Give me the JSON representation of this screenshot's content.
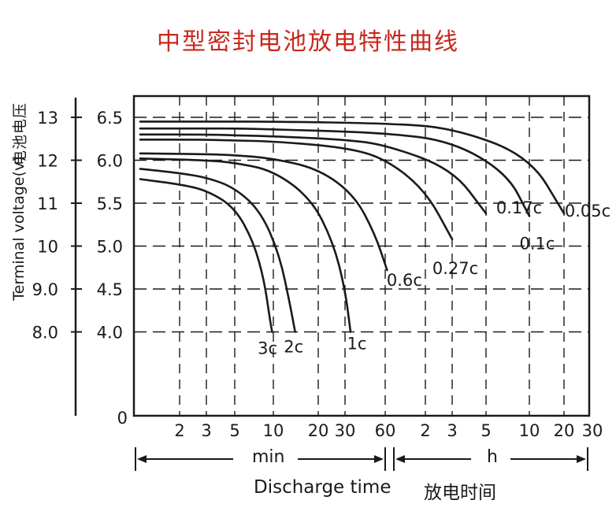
{
  "chart_data": {
    "type": "line",
    "title": "中型密封电池放电特性曲线",
    "ylabel": "Terminal voltage(v)",
    "ylabel_cn": "电池电压",
    "xlabel": "Discharge time",
    "xlabel_cn": "放电时间",
    "x_units": [
      "min",
      "h"
    ],
    "x_ticks_min": [
      "2",
      "3",
      "5",
      "10",
      "20",
      "30",
      "60"
    ],
    "x_ticks_h": [
      "2",
      "3",
      "5",
      "10",
      "20",
      "30"
    ],
    "y_ticks_12v": [
      "13",
      "12",
      "11",
      "10",
      "9.0",
      "8.0"
    ],
    "y_ticks_6v": [
      "6.5",
      "6.0",
      "5.5",
      "5.0",
      "4.5",
      "4.0"
    ],
    "y_zero": "0",
    "ylim_6v": [
      4.0,
      6.5
    ],
    "grid": true,
    "series": [
      {
        "name": "3c",
        "x_min": [
          1,
          2,
          3,
          5,
          7,
          8.5,
          9.5,
          9.8
        ],
        "y": [
          5.78,
          5.72,
          5.65,
          5.45,
          5.05,
          4.6,
          4.1,
          4.0
        ]
      },
      {
        "name": "2c",
        "x_min": [
          1,
          2,
          3,
          5,
          8,
          11,
          13,
          14
        ],
        "y": [
          5.9,
          5.85,
          5.8,
          5.68,
          5.4,
          4.9,
          4.3,
          4.0
        ]
      },
      {
        "name": "1c",
        "x_min": [
          1,
          3,
          5,
          10,
          18,
          25,
          30,
          33
        ],
        "y": [
          6.02,
          6.0,
          5.97,
          5.88,
          5.55,
          5.05,
          4.5,
          4.0
        ]
      },
      {
        "name": "0.6c",
        "x_min": [
          1,
          3,
          5,
          10,
          20,
          35,
          50,
          62
        ],
        "y": [
          6.08,
          6.07,
          6.06,
          6.02,
          5.9,
          5.6,
          5.15,
          4.72
        ]
      },
      {
        "name": "0.27c",
        "x_min": [
          1,
          3,
          5,
          10,
          30,
          60,
          120,
          180
        ],
        "y": [
          6.24,
          6.24,
          6.23,
          6.22,
          6.15,
          6.02,
          5.65,
          5.08
        ]
      },
      {
        "name": "0.17c",
        "x_min": [
          1,
          3,
          5,
          10,
          30,
          60,
          180,
          300
        ],
        "y": [
          6.3,
          6.3,
          6.29,
          6.28,
          6.24,
          6.18,
          5.9,
          5.38
        ]
      },
      {
        "name": "0.1c",
        "x_min": [
          1,
          3,
          5,
          10,
          60,
          180,
          420,
          600
        ],
        "y": [
          6.37,
          6.37,
          6.37,
          6.36,
          6.32,
          6.22,
          5.85,
          5.35
        ]
      },
      {
        "name": "0.05c",
        "x_min": [
          1,
          3,
          5,
          10,
          60,
          180,
          600,
          1200
        ],
        "y": [
          6.45,
          6.45,
          6.45,
          6.45,
          6.43,
          6.38,
          6.05,
          5.38
        ]
      }
    ]
  }
}
